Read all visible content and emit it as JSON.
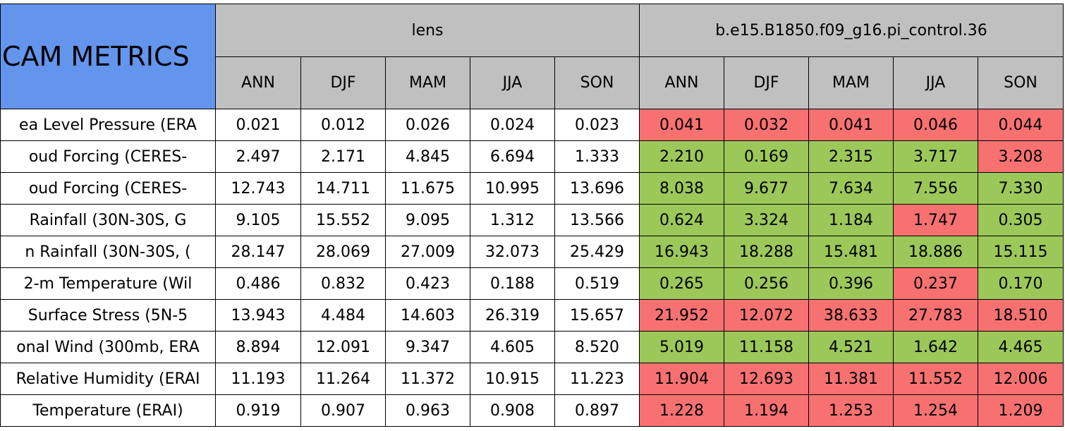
{
  "table": {
    "title": "CAM METRICS",
    "title_color": "#6495ed",
    "header_color": "#c0c0c0",
    "groups": [
      "lens",
      "b.e15.B1850.f09_g16.pi_control.36"
    ],
    "seasons": [
      "ANN",
      "DJF",
      "MAM",
      "JJA",
      "SON",
      "ANN",
      "DJF",
      "MAM",
      "JJA",
      "SON"
    ],
    "rows": [
      {
        "label": "ea Level Pressure (ERA",
        "values": [
          "0.021",
          "0.012",
          "0.026",
          "0.024",
          "0.023",
          "0.041",
          "0.032",
          "0.041",
          "0.046",
          "0.044"
        ],
        "colors": [
          "#ffffff",
          "#ffffff",
          "#ffffff",
          "#ffffff",
          "#ffffff",
          "#f87171",
          "#f87171",
          "#f87171",
          "#f87171",
          "#f87171"
        ]
      },
      {
        "label": "oud Forcing (CERES-",
        "values": [
          "2.497",
          "2.171",
          "4.845",
          "6.694",
          "1.333",
          "2.210",
          "0.169",
          "2.315",
          "3.717",
          "3.208"
        ],
        "colors": [
          "#ffffff",
          "#ffffff",
          "#ffffff",
          "#ffffff",
          "#ffffff",
          "#9cc85a",
          "#9cc85a",
          "#9cc85a",
          "#9cc85a",
          "#f87171"
        ]
      },
      {
        "label": "oud Forcing (CERES-",
        "values": [
          "12.743",
          "14.711",
          "11.675",
          "10.995",
          "13.696",
          "8.038",
          "9.677",
          "7.634",
          "7.556",
          "7.330"
        ],
        "colors": [
          "#ffffff",
          "#ffffff",
          "#ffffff",
          "#ffffff",
          "#ffffff",
          "#9cc85a",
          "#9cc85a",
          "#9cc85a",
          "#9cc85a",
          "#9cc85a"
        ]
      },
      {
        "label": "Rainfall (30N-30S, G",
        "values": [
          "9.105",
          "15.552",
          "9.095",
          "1.312",
          "13.566",
          "0.624",
          "3.324",
          "1.184",
          "1.747",
          "0.305"
        ],
        "colors": [
          "#ffffff",
          "#ffffff",
          "#ffffff",
          "#ffffff",
          "#ffffff",
          "#9cc85a",
          "#9cc85a",
          "#9cc85a",
          "#f87171",
          "#9cc85a"
        ]
      },
      {
        "label": "n Rainfall (30N-30S, (",
        "values": [
          "28.147",
          "28.069",
          "27.009",
          "32.073",
          "25.429",
          "16.943",
          "18.288",
          "15.481",
          "18.886",
          "15.115"
        ],
        "colors": [
          "#ffffff",
          "#ffffff",
          "#ffffff",
          "#ffffff",
          "#ffffff",
          "#9cc85a",
          "#9cc85a",
          "#9cc85a",
          "#9cc85a",
          "#9cc85a"
        ]
      },
      {
        "label": "2-m Temperature (Wil",
        "values": [
          "0.486",
          "0.832",
          "0.423",
          "0.188",
          "0.519",
          "0.265",
          "0.256",
          "0.396",
          "0.237",
          "0.170"
        ],
        "colors": [
          "#ffffff",
          "#ffffff",
          "#ffffff",
          "#ffffff",
          "#ffffff",
          "#9cc85a",
          "#9cc85a",
          "#9cc85a",
          "#f87171",
          "#9cc85a"
        ]
      },
      {
        "label": "Surface Stress (5N-5",
        "values": [
          "13.943",
          "4.484",
          "14.603",
          "26.319",
          "15.657",
          "21.952",
          "12.072",
          "38.633",
          "27.783",
          "18.510"
        ],
        "colors": [
          "#ffffff",
          "#ffffff",
          "#ffffff",
          "#ffffff",
          "#ffffff",
          "#f87171",
          "#f87171",
          "#f87171",
          "#f87171",
          "#f87171"
        ]
      },
      {
        "label": "onal Wind (300mb, ERA",
        "values": [
          "8.894",
          "12.091",
          "9.347",
          "4.605",
          "8.520",
          "5.019",
          "11.158",
          "4.521",
          "1.642",
          "4.465"
        ],
        "colors": [
          "#ffffff",
          "#ffffff",
          "#ffffff",
          "#ffffff",
          "#ffffff",
          "#9cc85a",
          "#9cc85a",
          "#9cc85a",
          "#9cc85a",
          "#9cc85a"
        ]
      },
      {
        "label": "Relative Humidity (ERAI",
        "values": [
          "11.193",
          "11.264",
          "11.372",
          "10.915",
          "11.223",
          "11.904",
          "12.693",
          "11.381",
          "11.552",
          "12.006"
        ],
        "colors": [
          "#ffffff",
          "#ffffff",
          "#ffffff",
          "#ffffff",
          "#ffffff",
          "#f87171",
          "#f87171",
          "#f87171",
          "#f87171",
          "#f87171"
        ]
      },
      {
        "label": "Temperature (ERAI)",
        "values": [
          "0.919",
          "0.907",
          "0.963",
          "0.908",
          "0.897",
          "1.228",
          "1.194",
          "1.253",
          "1.254",
          "1.209"
        ],
        "colors": [
          "#ffffff",
          "#ffffff",
          "#ffffff",
          "#ffffff",
          "#ffffff",
          "#f87171",
          "#f87171",
          "#f87171",
          "#f87171",
          "#f87171"
        ]
      }
    ]
  }
}
